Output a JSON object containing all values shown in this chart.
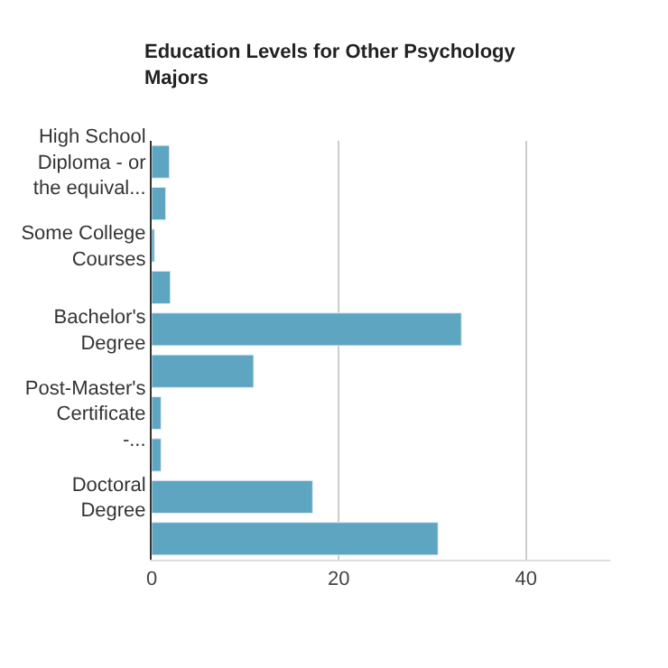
{
  "chart_data": {
    "type": "bar",
    "orientation": "horizontal",
    "title": "Education Levels for Other Psychology Majors",
    "categories": [
      "High School Diploma - or the equival...",
      null,
      "Some College Courses",
      null,
      "Bachelor's Degree",
      null,
      "Post-Master's Certificate -...",
      null,
      "Doctoral Degree",
      null
    ],
    "values": [
      1.9,
      1.5,
      0.3,
      2.0,
      33.1,
      10.9,
      1.0,
      1.0,
      17.2,
      30.6
    ],
    "color": "#5ea5c2",
    "xlim": [
      0,
      49
    ],
    "xticks": [
      0,
      20,
      40
    ],
    "grid": "x"
  }
}
